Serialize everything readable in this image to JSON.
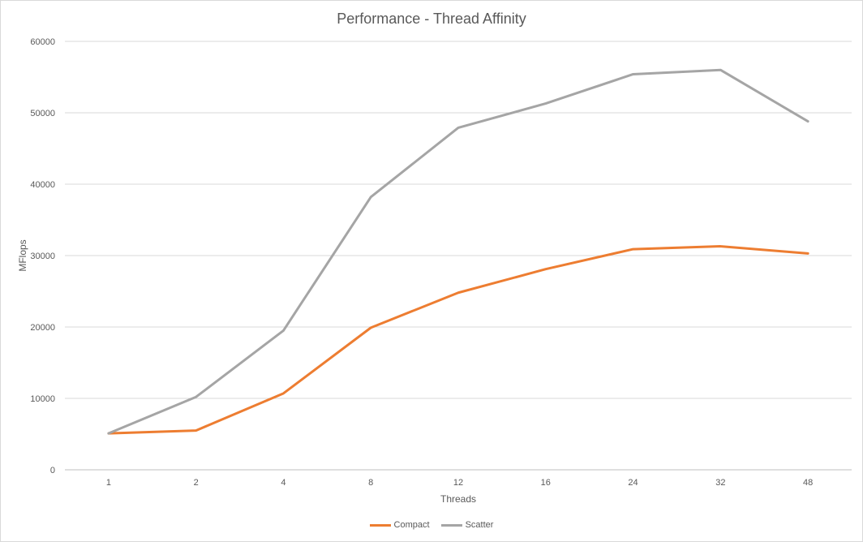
{
  "chart_data": {
    "type": "line",
    "title": "Performance - Thread Affinity",
    "xlabel": "Threads",
    "ylabel": "MFlops",
    "categories": [
      "1",
      "2",
      "4",
      "8",
      "12",
      "16",
      "24",
      "32",
      "48"
    ],
    "ylim": [
      0,
      60000
    ],
    "yticks": [
      0,
      10000,
      20000,
      30000,
      40000,
      50000,
      60000
    ],
    "grid": true,
    "legend_position": "bottom",
    "series": [
      {
        "name": "Compact",
        "color": "#ed7d31",
        "values": [
          5100,
          5500,
          10700,
          19900,
          24800,
          28100,
          30900,
          31300,
          30300
        ]
      },
      {
        "name": "Scatter",
        "color": "#a5a5a5",
        "values": [
          5100,
          10200,
          19500,
          38200,
          47900,
          51300,
          55400,
          56000,
          48800
        ]
      }
    ]
  }
}
